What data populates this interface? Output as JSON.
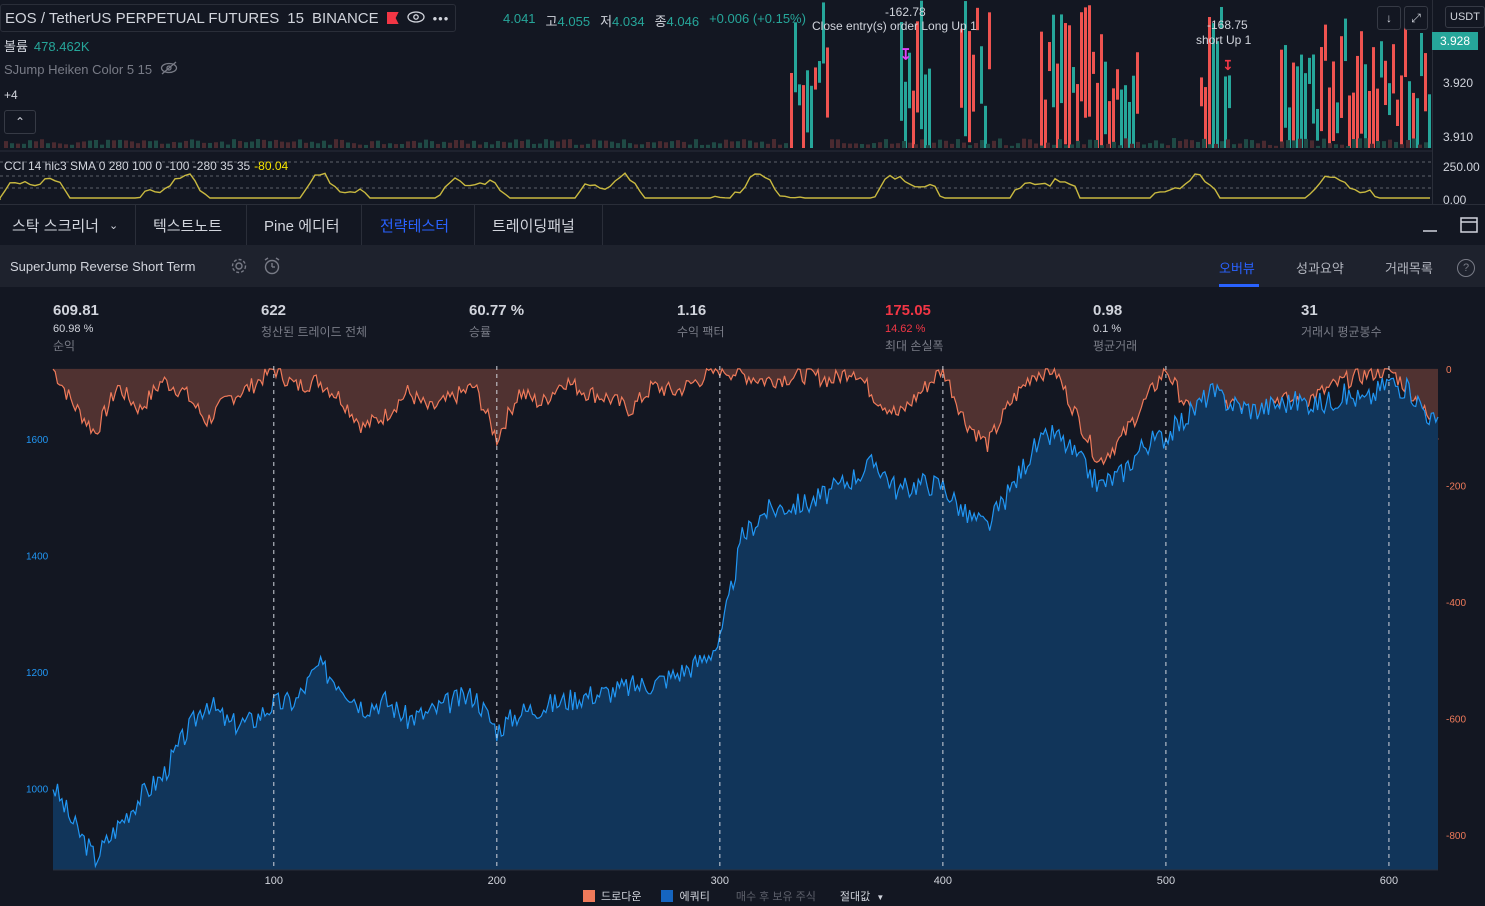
{
  "top_chart": {
    "symbol": "EOS / TetherUS PERPETUAL FUTURES",
    "interval": "15",
    "exchange": "BINANCE",
    "ohlc": [
      {
        "label": "",
        "value": "4.041"
      },
      {
        "label": "고",
        "value": "4.055"
      },
      {
        "label": "저",
        "value": "4.034"
      },
      {
        "label": "종",
        "value": "4.046"
      },
      {
        "label": "",
        "value": "+0.006 (+0.15%)"
      }
    ],
    "volume_label": "볼륨",
    "volume_value": "478.462K",
    "indicator_name": "SJump Heiken Color 5 15",
    "hidden_count": "+4",
    "annotations": {
      "a1_value": "-162.78",
      "a1_text": "Close entry(s) order Long Up 1",
      "a2_value": "-168.75",
      "a2_text": "short Up 1"
    },
    "price_axis": {
      "currency": "USDT",
      "current_price": "3.928",
      "ticks": [
        "3.920",
        "3.910"
      ],
      "cci_ticks": [
        "250.00",
        "0.00"
      ]
    },
    "cci_label": "CCI 14 hlc3 SMA 0 280 100 0 -100 -280 35 35",
    "cci_value": "-80.04",
    "colors": {
      "up": "#26a69a",
      "down": "#ef5350",
      "cci": "#c9b940"
    }
  },
  "tabs": [
    {
      "label": "스탁 스크리너"
    },
    {
      "label": "텍스트노트"
    },
    {
      "label": "Pine 에디터"
    },
    {
      "label": "전략테스터"
    },
    {
      "label": "트레이딩패널"
    }
  ],
  "strategy": {
    "name": "SuperJump Reverse Short Term",
    "right_tabs": [
      {
        "label": "오버뷰"
      },
      {
        "label": "성과요약"
      },
      {
        "label": "거래목록"
      }
    ],
    "help": "?"
  },
  "stats": [
    {
      "value": "609.81",
      "sub": "60.98 %",
      "label": "순익"
    },
    {
      "value": "622",
      "sub": "",
      "label": "청산된 트레이드 전체"
    },
    {
      "value": "60.77 %",
      "sub": "",
      "label": "승률"
    },
    {
      "value": "1.16",
      "sub": "",
      "label": "수익 팩터"
    },
    {
      "value": "175.05",
      "sub": "14.62 %",
      "label": "최대 손실폭"
    },
    {
      "value": "0.98",
      "sub": "0.1 %",
      "label": "평균거래"
    },
    {
      "value": "31",
      "sub": "",
      "label": "거래시 평균봉수"
    }
  ],
  "chart_data": {
    "type": "area",
    "x_ticks": [
      100,
      200,
      300,
      400,
      500,
      600
    ],
    "xlim": [
      1,
      622
    ],
    "left_axis": {
      "ticks": [
        1000,
        1200,
        1400,
        1600
      ],
      "ylim": [
        860,
        1725
      ]
    },
    "right_axis": {
      "ticks": [
        0,
        -200,
        -400,
        -600,
        -800
      ],
      "ylim": [
        -860,
        5
      ]
    },
    "series": [
      {
        "name": "에쿼티",
        "color": "#2962ff",
        "x": [
          1,
          10,
          20,
          30,
          40,
          50,
          60,
          70,
          80,
          90,
          100,
          110,
          120,
          130,
          140,
          150,
          160,
          170,
          180,
          190,
          200,
          210,
          220,
          230,
          240,
          250,
          260,
          270,
          280,
          290,
          300,
          310,
          320,
          330,
          340,
          350,
          360,
          370,
          380,
          390,
          400,
          410,
          420,
          430,
          440,
          450,
          460,
          470,
          480,
          490,
          500,
          510,
          520,
          530,
          540,
          550,
          560,
          570,
          580,
          590,
          600,
          610,
          622
        ],
        "values": [
          1005,
          940,
          880,
          935,
          985,
          1020,
          1090,
          1150,
          1110,
          1115,
          1145,
          1150,
          1210,
          1180,
          1140,
          1150,
          1120,
          1130,
          1150,
          1160,
          1100,
          1130,
          1140,
          1150,
          1160,
          1165,
          1175,
          1180,
          1195,
          1215,
          1250,
          1430,
          1475,
          1485,
          1490,
          1510,
          1535,
          1560,
          1510,
          1525,
          1520,
          1470,
          1450,
          1510,
          1580,
          1610,
          1570,
          1520,
          1540,
          1590,
          1605,
          1640,
          1680,
          1660,
          1650,
          1660,
          1665,
          1660,
          1675,
          1665,
          1700,
          1680,
          1620
        ]
      },
      {
        "name": "드로다운",
        "color": "#ef7a5a",
        "x": [
          1,
          10,
          20,
          30,
          40,
          50,
          60,
          70,
          80,
          90,
          100,
          110,
          120,
          130,
          140,
          150,
          160,
          170,
          180,
          190,
          200,
          210,
          220,
          230,
          240,
          250,
          260,
          270,
          280,
          290,
          300,
          310,
          320,
          330,
          340,
          350,
          360,
          370,
          380,
          390,
          400,
          410,
          420,
          430,
          440,
          450,
          460,
          470,
          480,
          490,
          500,
          510,
          520,
          530,
          540,
          550,
          560,
          570,
          580,
          590,
          600,
          610,
          622
        ],
        "values": [
          0,
          -60,
          -110,
          -30,
          -70,
          -20,
          -40,
          -90,
          -50,
          -30,
          0,
          -30,
          -20,
          -50,
          -100,
          -80,
          -40,
          -70,
          -50,
          -30,
          -120,
          -40,
          -60,
          -20,
          -40,
          -50,
          -70,
          -30,
          -40,
          -20,
          0,
          -10,
          -20,
          -15,
          -10,
          -20,
          0,
          -50,
          -80,
          -40,
          0,
          -90,
          -130,
          -60,
          -10,
          0,
          -80,
          -160,
          -120,
          -60,
          0,
          -70,
          -110,
          -50,
          -80,
          -50,
          -60,
          -40,
          -20,
          -10,
          0,
          -40,
          -110
        ]
      }
    ],
    "legend": [
      {
        "name": "드로다운",
        "color": "#ef7a5a"
      },
      {
        "name": "에쿼티",
        "color": "#1565c0"
      }
    ],
    "footer_options": [
      "매수 후 보유 주식",
      "절대값"
    ]
  }
}
